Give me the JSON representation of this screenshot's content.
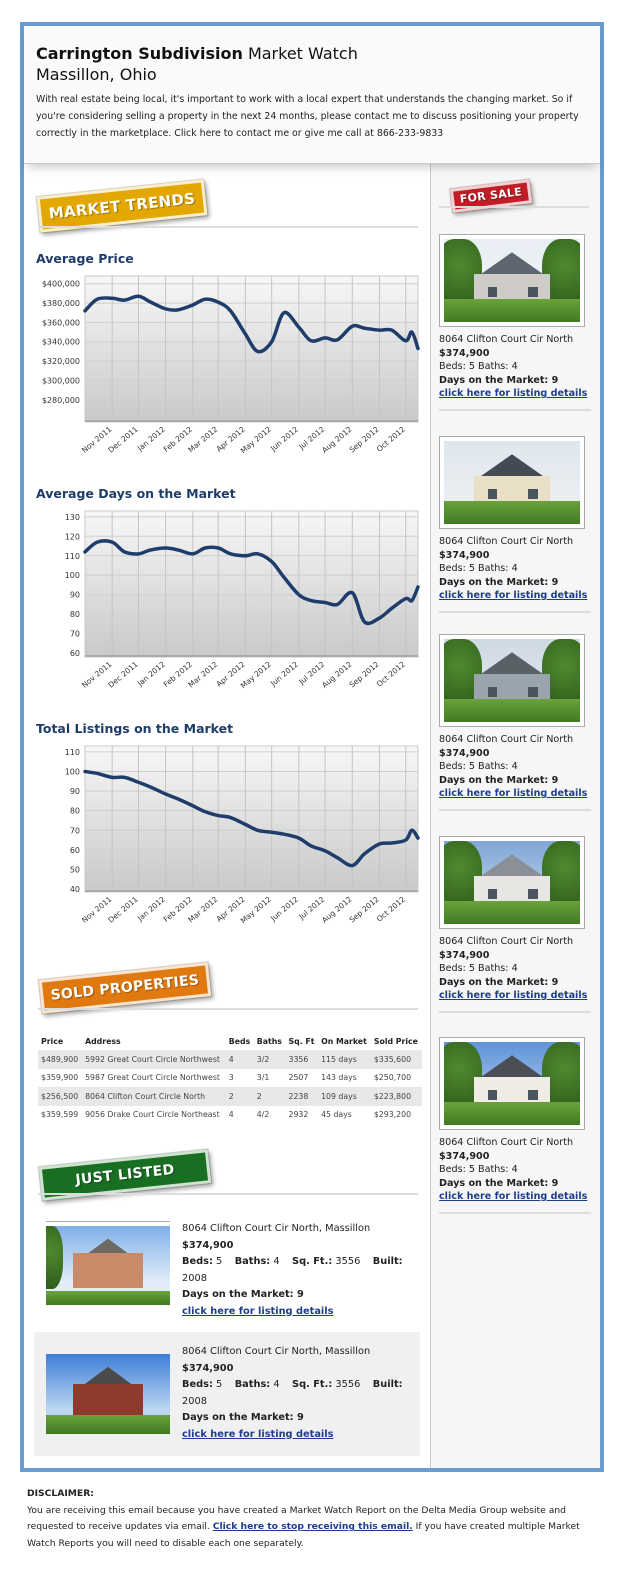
{
  "header": {
    "title_bold": "Carrington Subdivision",
    "title_rest": " Market Watch",
    "location": "Massillon, Ohio",
    "intro": "With real estate being local, it's important to work with a local expert that understands the changing market. So if you're considering selling a property in the next 24 months, please contact me to discuss positioning your property correctly in the marketplace. Click here to contact me or give me call at 866-233-9833"
  },
  "market_trends": {
    "badge": "MARKET TRENDS",
    "badge_color": "#e3a800"
  },
  "chart_data": [
    {
      "type": "line",
      "title": "Average Price",
      "color": "#1e3d6b",
      "xlim": [
        "2011-10-01",
        "2012-10-15"
      ],
      "x_ticks": [
        "2011-11-01",
        "2011-12-01",
        "2012-01-01",
        "2012-02-01",
        "2012-03-01",
        "2012-04-01",
        "2012-05-01",
        "2012-06-01",
        "2012-07-01",
        "2012-08-01",
        "2012-09-01",
        "2012-10-01"
      ],
      "x_tick_labels": [
        "Nov 2011",
        "Dec 2011",
        "Jan 2012",
        "Feb 2012",
        "Mar 2012",
        "Apr 2012",
        "May 2012",
        "Jun 2012",
        "Jul 2012",
        "Aug 2012",
        "Sep 2012",
        "Oct 2012"
      ],
      "y_ticks": [
        280000,
        300000,
        320000,
        340000,
        360000,
        380000,
        400000
      ],
      "y_tick_labels": [
        "$280,000",
        "$300,000",
        "$320,000",
        "$340,000",
        "$360,000",
        "$380,000",
        "$400,000"
      ],
      "ylim": [
        257000,
        408000
      ],
      "grid": true,
      "x": [
        "2011-10-01",
        "2011-10-15",
        "2011-11-01",
        "2011-11-15",
        "2011-12-01",
        "2011-12-15",
        "2012-01-01",
        "2012-01-15",
        "2012-02-01",
        "2012-02-15",
        "2012-03-01",
        "2012-03-15",
        "2012-04-01",
        "2012-04-15",
        "2012-05-01",
        "2012-05-15",
        "2012-06-01",
        "2012-06-15",
        "2012-07-01",
        "2012-07-15",
        "2012-08-01",
        "2012-08-15",
        "2012-09-01",
        "2012-09-15",
        "2012-10-01",
        "2012-10-08",
        "2012-10-15"
      ],
      "y": [
        372000,
        384000,
        385000,
        383000,
        387000,
        381000,
        374000,
        373000,
        378000,
        384000,
        381000,
        372000,
        348000,
        330000,
        340000,
        370000,
        355000,
        341000,
        344000,
        342000,
        356000,
        354000,
        352000,
        352000,
        341000,
        350000,
        333000
      ]
    },
    {
      "type": "line",
      "title": "Average Days on the Market",
      "color": "#1e3d6b",
      "xlim": [
        "2011-10-01",
        "2012-10-15"
      ],
      "x_ticks": [
        "2011-11-01",
        "2011-12-01",
        "2012-01-01",
        "2012-02-01",
        "2012-03-01",
        "2012-04-01",
        "2012-05-01",
        "2012-06-01",
        "2012-07-01",
        "2012-08-01",
        "2012-09-01",
        "2012-10-01"
      ],
      "x_tick_labels": [
        "Nov 2011",
        "Dec 2011",
        "Jan 2012",
        "Feb 2012",
        "Mar 2012",
        "Apr 2012",
        "May 2012",
        "Jun 2012",
        "Jul 2012",
        "Aug 2012",
        "Sep 2012",
        "Oct 2012"
      ],
      "y_ticks": [
        60,
        70,
        80,
        90,
        100,
        110,
        120,
        130
      ],
      "y_tick_labels": [
        "60",
        "70",
        "80",
        "90",
        "100",
        "110",
        "120",
        "130"
      ],
      "ylim": [
        58,
        133
      ],
      "grid": true,
      "x": [
        "2011-10-01",
        "2011-10-15",
        "2011-11-01",
        "2011-11-15",
        "2011-12-01",
        "2011-12-15",
        "2012-01-01",
        "2012-01-15",
        "2012-02-01",
        "2012-02-15",
        "2012-03-01",
        "2012-03-15",
        "2012-04-01",
        "2012-04-15",
        "2012-05-01",
        "2012-05-15",
        "2012-06-01",
        "2012-06-15",
        "2012-07-01",
        "2012-07-15",
        "2012-08-01",
        "2012-08-15",
        "2012-09-01",
        "2012-09-15",
        "2012-10-01",
        "2012-10-08",
        "2012-10-15"
      ],
      "y": [
        112,
        117,
        117,
        112,
        111,
        113,
        114,
        113,
        111,
        114,
        114,
        111,
        110,
        111,
        107,
        99,
        90,
        87,
        86,
        85,
        91,
        76,
        78,
        83,
        88,
        87,
        94
      ]
    },
    {
      "type": "line",
      "title": "Total Listings on the Market",
      "color": "#1e3d6b",
      "xlim": [
        "2011-10-01",
        "2012-10-15"
      ],
      "x_ticks": [
        "2011-11-01",
        "2011-12-01",
        "2012-01-01",
        "2012-02-01",
        "2012-03-01",
        "2012-04-01",
        "2012-05-01",
        "2012-06-01",
        "2012-07-01",
        "2012-08-01",
        "2012-09-01",
        "2012-10-01"
      ],
      "x_tick_labels": [
        "Nov 2011",
        "Dec 2011",
        "Jan 2012",
        "Feb 2012",
        "Mar 2012",
        "Apr 2012",
        "May 2012",
        "Jun 2012",
        "Jul 2012",
        "Aug 2012",
        "Sep 2012",
        "Oct 2012"
      ],
      "y_ticks": [
        40,
        50,
        60,
        70,
        80,
        90,
        100,
        110
      ],
      "y_tick_labels": [
        "40",
        "50",
        "60",
        "70",
        "80",
        "90",
        "100",
        "110"
      ],
      "ylim": [
        38.5,
        113
      ],
      "grid": true,
      "x": [
        "2011-10-01",
        "2011-10-15",
        "2011-11-01",
        "2011-11-15",
        "2011-12-01",
        "2011-12-15",
        "2012-01-01",
        "2012-01-15",
        "2012-02-01",
        "2012-02-15",
        "2012-03-01",
        "2012-03-15",
        "2012-04-01",
        "2012-04-15",
        "2012-05-01",
        "2012-05-15",
        "2012-06-01",
        "2012-06-15",
        "2012-07-01",
        "2012-07-15",
        "2012-08-01",
        "2012-08-15",
        "2012-09-01",
        "2012-09-15",
        "2012-10-01",
        "2012-10-08",
        "2012-10-15"
      ],
      "y": [
        100,
        99,
        97,
        97,
        94.5,
        92,
        88.5,
        86,
        82.5,
        79.5,
        77.5,
        76.5,
        73,
        70,
        69,
        68,
        66,
        62,
        59.5,
        56,
        52,
        58,
        63,
        63.5,
        65,
        70,
        66
      ]
    }
  ],
  "sidebar": {
    "badge": "FOR SALE",
    "badge_color": "#c01d26",
    "listings": [
      {
        "address": "8064 Clifton Court Cir North",
        "price": "$374,900",
        "beds_baths": "Beds: 5 Baths: 4",
        "days": "Days on the Market: 9",
        "link": "click here for listing details"
      },
      {
        "address": "8064 Clifton Court Cir North",
        "price": "$374,900",
        "beds_baths": "Beds: 5 Baths: 4",
        "days": "Days on the Market: 9",
        "link": "click here for listing details"
      },
      {
        "address": "8064 Clifton Court Cir North",
        "price": "$374,900",
        "beds_baths": "Beds: 5 Baths: 4",
        "days": "Days on the Market: 9",
        "link": "click here for listing details"
      },
      {
        "address": "8064 Clifton Court Cir North",
        "price": "$374,900",
        "beds_baths": "Beds: 5 Baths: 4",
        "days": "Days on the Market: 9",
        "link": "click here for listing details"
      },
      {
        "address": "8064 Clifton Court Cir North",
        "price": "$374,900",
        "beds_baths": "Beds: 5 Baths: 4",
        "days": "Days on the Market: 9",
        "link": "click here for listing details"
      }
    ]
  },
  "sold": {
    "badge": "SOLD PROPERTIES",
    "badge_color": "#e07a10",
    "columns": [
      "Price",
      "Address",
      "Beds",
      "Baths",
      "Sq. Ft",
      "On Market",
      "Sold Price"
    ],
    "rows": [
      [
        "$489,900",
        "5992 Great Court Circle Northwest",
        "4",
        "3/2",
        "3356",
        "115 days",
        "$335,600"
      ],
      [
        "$359,900",
        "5987 Great Court Circle Northwest",
        "3",
        "3/1",
        "2507",
        "143 days",
        "$250,700"
      ],
      [
        "$256,500",
        "8064 Clifton Court Circle North",
        "2",
        "2",
        "2238",
        "109 days",
        "$223,800"
      ],
      [
        "$359,599",
        "9056 Drake Court Circle Northeast",
        "4",
        "4/2",
        "2932",
        "45 days",
        "$293,200"
      ]
    ]
  },
  "just_listed": {
    "badge": "JUST LISTED",
    "badge_color": "#186f22",
    "listings": [
      {
        "address": "8064 Clifton Court Cir North, Massillon",
        "price": "$374,900",
        "beds_label": "Beds:",
        "beds": "5",
        "baths_label": "Baths:",
        "baths": "4",
        "sqft_label": "Sq. Ft.:",
        "sqft": "3556",
        "built_label": "Built:",
        "built": "2008",
        "days": "Days on the Market: 9",
        "link": "click here for listing details"
      },
      {
        "address": "8064 Clifton Court Cir North, Massillon",
        "price": "$374,900",
        "beds_label": "Beds:",
        "beds": "5",
        "baths_label": "Baths:",
        "baths": "4",
        "sqft_label": "Sq. Ft.:",
        "sqft": "3556",
        "built_label": "Built:",
        "built": "2008",
        "days": "Days on the Market: 9",
        "link": "click here for listing details"
      }
    ]
  },
  "disclaimer": {
    "heading": "DISCLAIMER:",
    "text_before": "You are receiving this email because you have created a Market Watch Report on the Delta Media Group website and requested to receive updates via email. ",
    "link": "Click here to stop receiving this email.",
    "text_after": " If you have created multiple Market Watch Reports you will need to disable each one separately."
  },
  "colors": {
    "frame": "#6a9bd1",
    "heading": "#1e3d6b",
    "link": "#1e3d8c"
  }
}
